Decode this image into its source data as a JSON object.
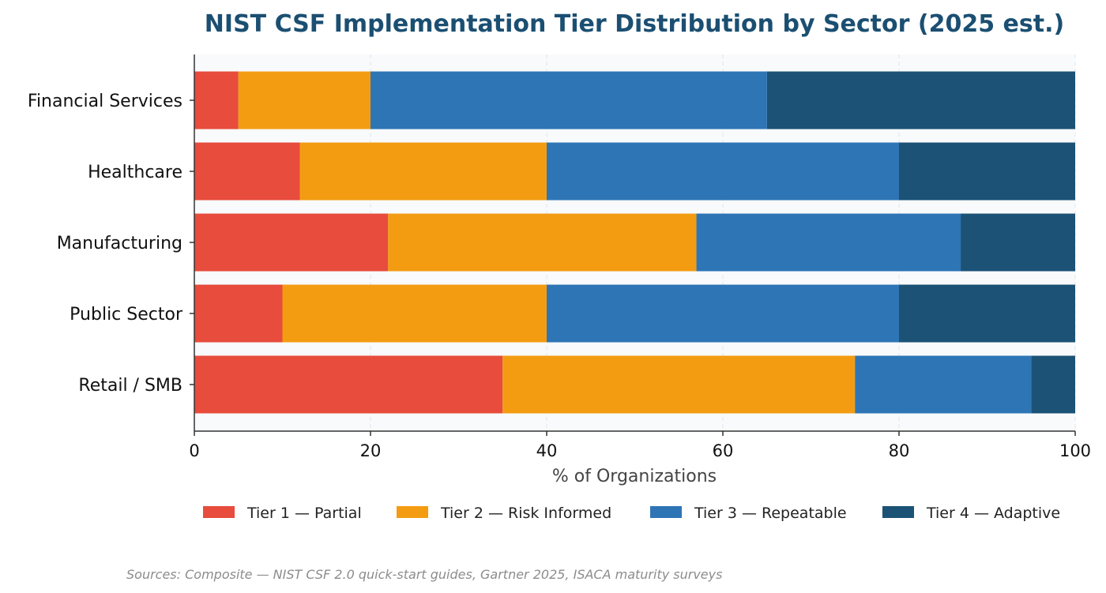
{
  "chart_data": {
    "type": "bar",
    "orientation": "horizontal",
    "stacked": true,
    "title": "NIST CSF Implementation Tier Distribution by Sector (2025 est.)",
    "xlabel": "% of Organizations",
    "ylabel": "",
    "xlim": [
      0,
      100
    ],
    "xticks": [
      "0",
      "20",
      "40",
      "60",
      "80",
      "100"
    ],
    "categories": [
      "Financial Services",
      "Healthcare",
      "Manufacturing",
      "Public Sector",
      "Retail / SMB"
    ],
    "series": [
      {
        "name": "Tier 1 — Partial",
        "color": "#e74c3c",
        "values": [
          5,
          12,
          22,
          10,
          35
        ]
      },
      {
        "name": "Tier 2 — Risk Informed",
        "color": "#f39c12",
        "values": [
          15,
          28,
          35,
          30,
          40
        ]
      },
      {
        "name": "Tier 3 — Repeatable",
        "color": "#2e75b6",
        "values": [
          45,
          40,
          30,
          40,
          20
        ]
      },
      {
        "name": "Tier 4 — Adaptive",
        "color": "#1b5276",
        "values": [
          35,
          20,
          13,
          20,
          5
        ]
      }
    ],
    "grid": "vertical-dashed",
    "legend_position": "bottom",
    "source": "Sources: Composite — NIST CSF 2.0 quick-start guides, Gartner 2025, ISACA maturity surveys"
  }
}
